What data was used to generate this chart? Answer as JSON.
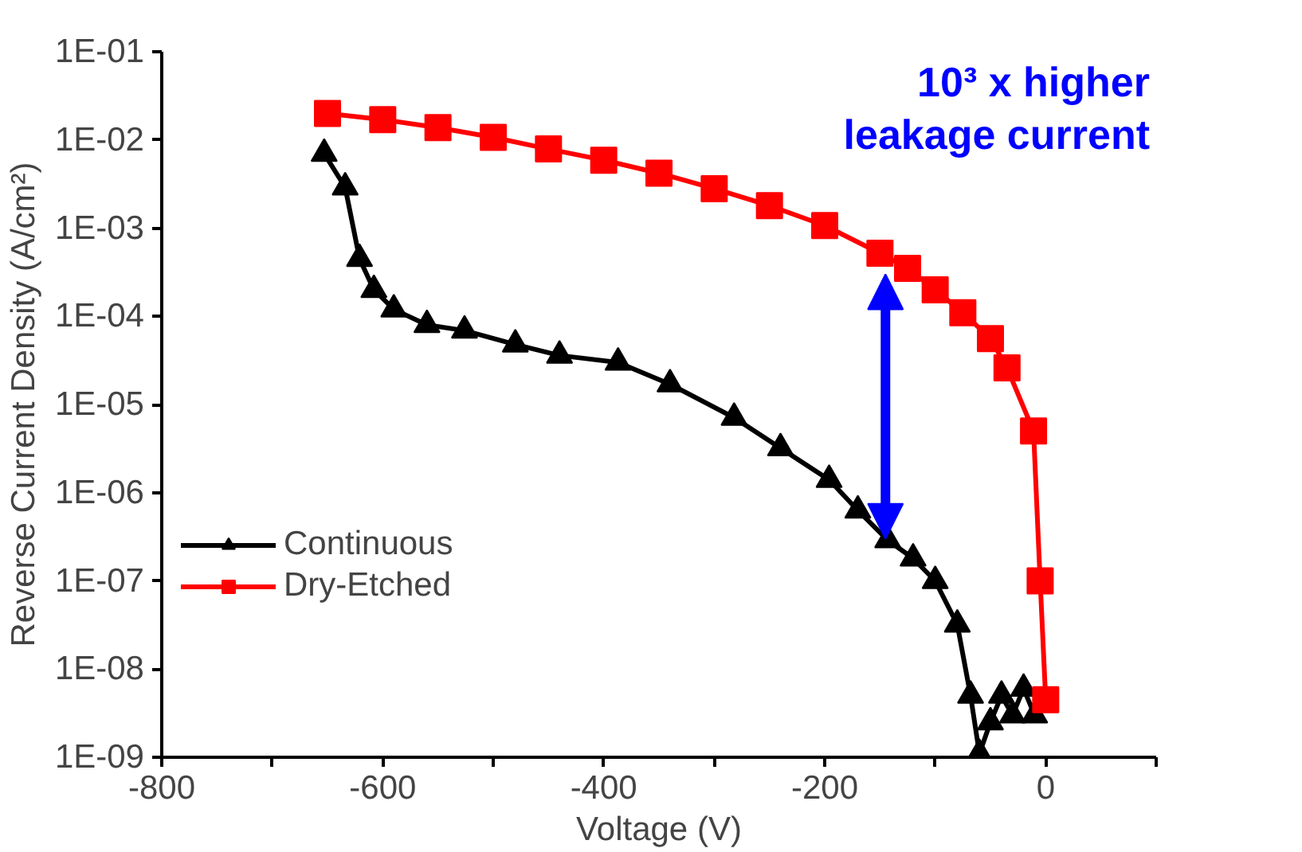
{
  "chart_data": {
    "type": "line",
    "xlabel": "Voltage (V)",
    "ylabel": "Reverse Current Density (A/cm²)",
    "log": "y",
    "xlim": [
      -800,
      100
    ],
    "ylim": [
      1e-09,
      0.1
    ],
    "xticks": [
      -800,
      {
        "value": -700,
        "label": null
      },
      -600,
      {
        "value": -500,
        "label": null
      },
      -400,
      {
        "value": -300,
        "label": null
      },
      -200,
      {
        "value": -100,
        "label": null
      },
      0,
      {
        "value": 100,
        "label": null
      }
    ],
    "yticks": [
      {
        "value": 1e-09,
        "label": "1E-09"
      },
      {
        "value": 1e-08,
        "label": "1E-08"
      },
      {
        "value": 1e-07,
        "label": "1E-07"
      },
      {
        "value": 1e-06,
        "label": "1E-06"
      },
      {
        "value": 1e-05,
        "label": "1E-05"
      },
      {
        "value": 0.0001,
        "label": "1E-04"
      },
      {
        "value": 0.001,
        "label": "1E-03"
      },
      {
        "value": 0.01,
        "label": "1E-02"
      },
      {
        "value": 0.1,
        "label": "1E-01"
      }
    ],
    "series": [
      {
        "name": "Continuous",
        "color": "#000000",
        "marker": "triangle",
        "x": [
          -653,
          -634,
          -621,
          -608,
          -590,
          -560,
          -526,
          -480,
          -440,
          -387,
          -340,
          -282,
          -240,
          -196,
          -170,
          -143,
          -120,
          -100,
          -80,
          -68,
          -60,
          -50,
          -40,
          -30,
          -20,
          -10,
          0
        ],
        "values": [
          0.007,
          0.0029,
          0.00045,
          0.0002,
          0.00012,
          8e-05,
          6.9e-05,
          4.8e-05,
          3.6e-05,
          3e-05,
          1.7e-05,
          7.1e-06,
          3.2e-06,
          1.4e-06,
          6.3e-07,
          2.9e-07,
          1.8e-07,
          1e-07,
          3.2e-08,
          5e-09,
          1.1e-09,
          2.5e-09,
          5e-09,
          3e-09,
          6e-09,
          3e-09,
          4.5e-09
        ]
      },
      {
        "name": "Dry-Etched",
        "color": "#ff0000",
        "marker": "square",
        "x": [
          -650,
          -600,
          -550,
          -500,
          -450,
          -400,
          -350,
          -300,
          -250,
          -200,
          -150,
          -125,
          -100,
          -75,
          -50,
          -35,
          -11,
          -5,
          0
        ],
        "values": [
          0.02,
          0.017,
          0.0138,
          0.0107,
          0.0079,
          0.0059,
          0.0042,
          0.0028,
          0.0018,
          0.00107,
          0.00052,
          0.00035,
          0.0002,
          0.00011,
          5.6e-05,
          2.6e-05,
          5e-06,
          1e-07,
          4.5e-09
        ]
      }
    ],
    "legend": "bottom left",
    "grid": false,
    "line_style": "solid",
    "annotations": [
      "10³ x higher leakage current"
    ]
  }
}
